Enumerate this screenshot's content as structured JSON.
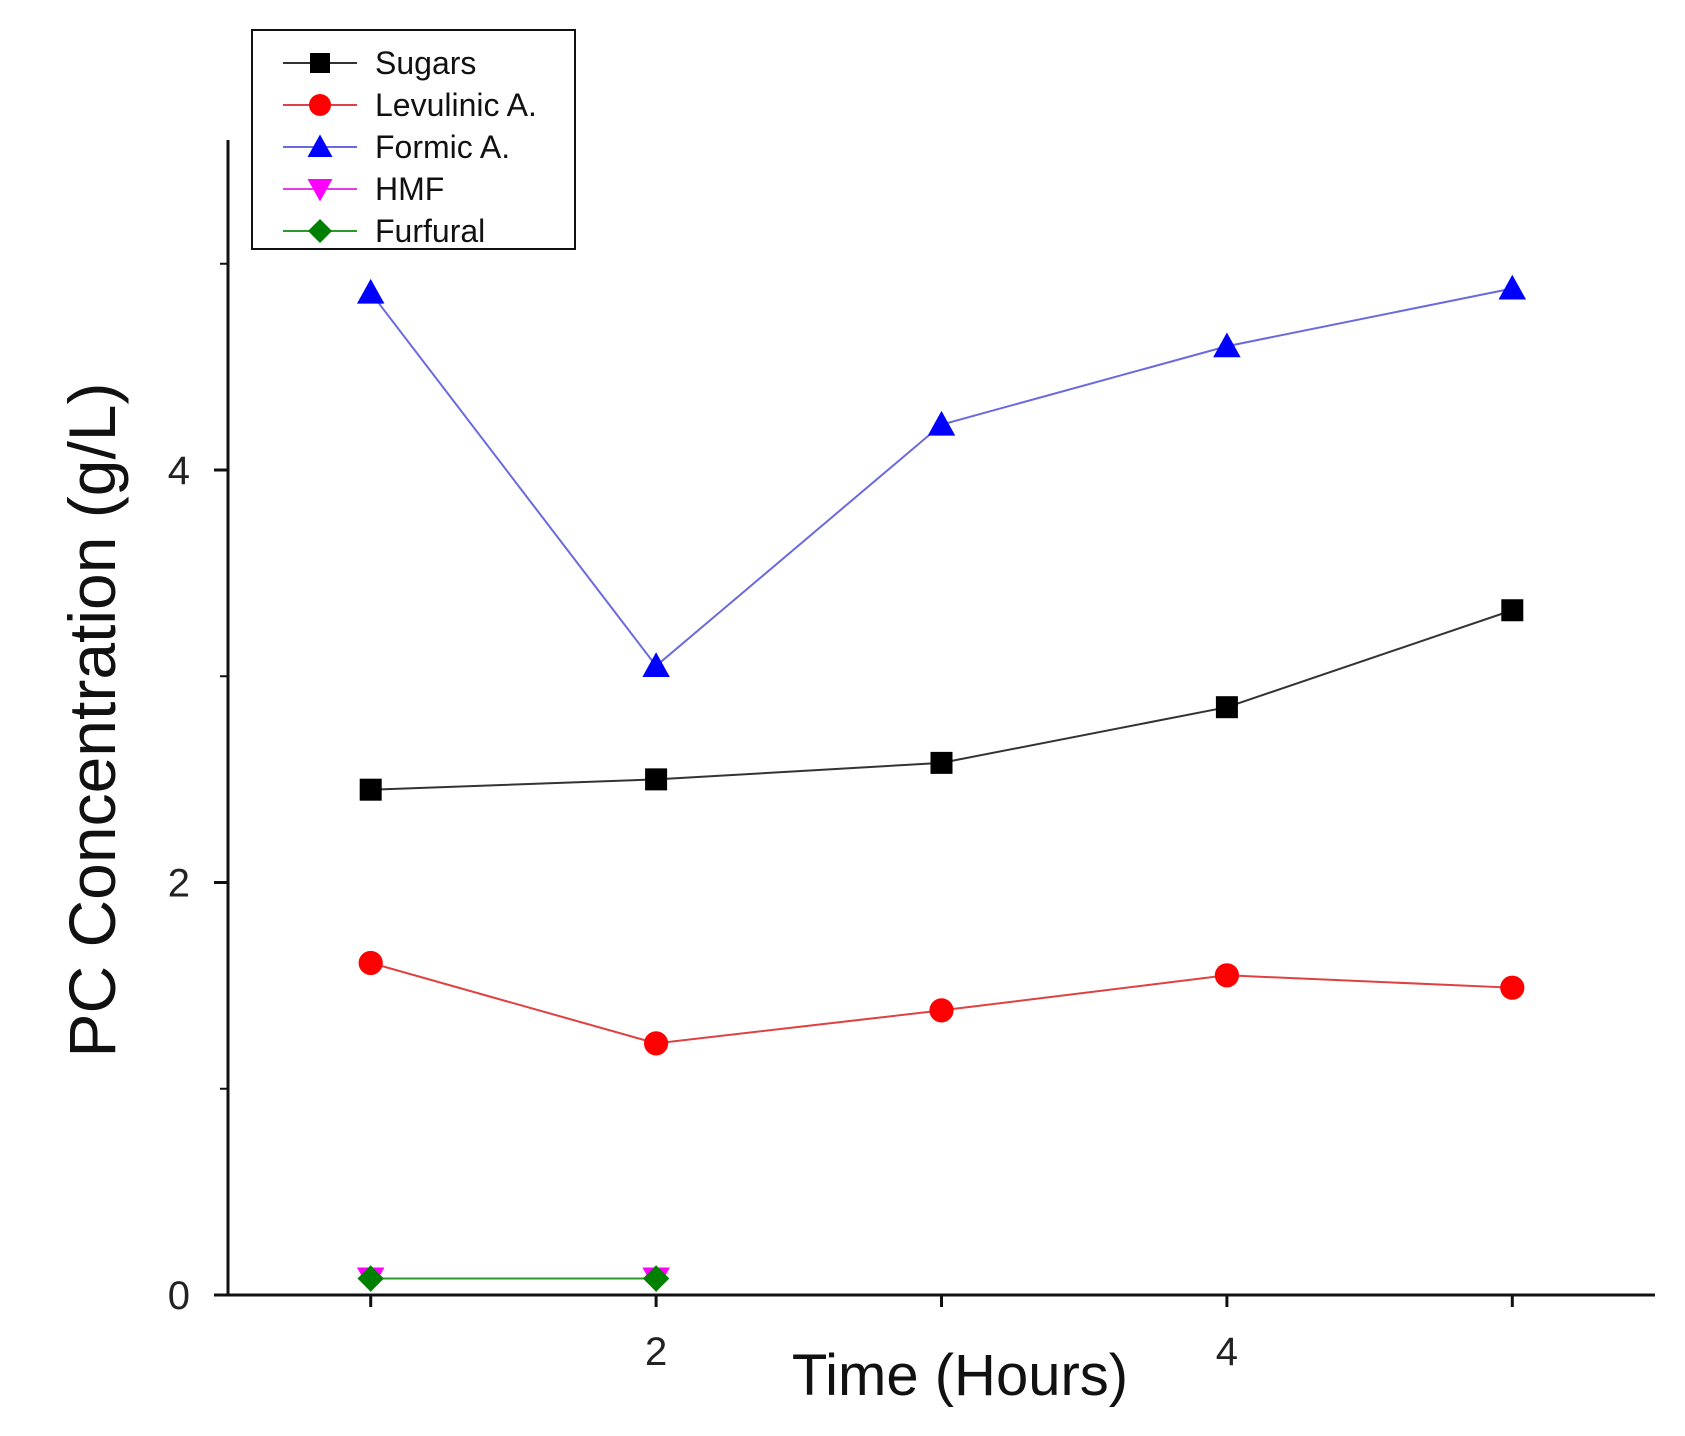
{
  "chart_data": {
    "type": "line",
    "title": "",
    "xlabel": "Time (Hours)",
    "ylabel": "PC Concentration (g/L)",
    "x": [
      1,
      2,
      3,
      4,
      5
    ],
    "xlim": [
      0.5,
      5.5
    ],
    "ylim": [
      0,
      5.6
    ],
    "xticks": [
      2,
      4
    ],
    "yticks": [
      0,
      2,
      4
    ],
    "legend_position": "top-left",
    "series": [
      {
        "name": "Sugars",
        "marker": "square",
        "color": "#000000",
        "line_color": "#333333",
        "values": [
          2.45,
          2.5,
          2.58,
          2.85,
          3.32
        ]
      },
      {
        "name": "Levulinic A.",
        "marker": "circle",
        "color": "#ff0000",
        "line_color": "#e04040",
        "values": [
          1.61,
          1.22,
          1.38,
          1.55,
          1.49
        ]
      },
      {
        "name": "Formic A.",
        "marker": "triangle-up",
        "color": "#0000ff",
        "line_color": "#6a6ae0",
        "values": [
          4.86,
          3.05,
          4.22,
          4.6,
          4.88
        ]
      },
      {
        "name": "HMF",
        "marker": "triangle-down",
        "color": "#ff00ff",
        "line_color": "#e040e0",
        "values": [
          0.08,
          0.08,
          null,
          null,
          null
        ]
      },
      {
        "name": "Furfural",
        "marker": "diamond",
        "color": "#008000",
        "line_color": "#2a9a2a",
        "values": [
          0.08,
          0.08,
          null,
          null,
          null
        ]
      }
    ]
  }
}
